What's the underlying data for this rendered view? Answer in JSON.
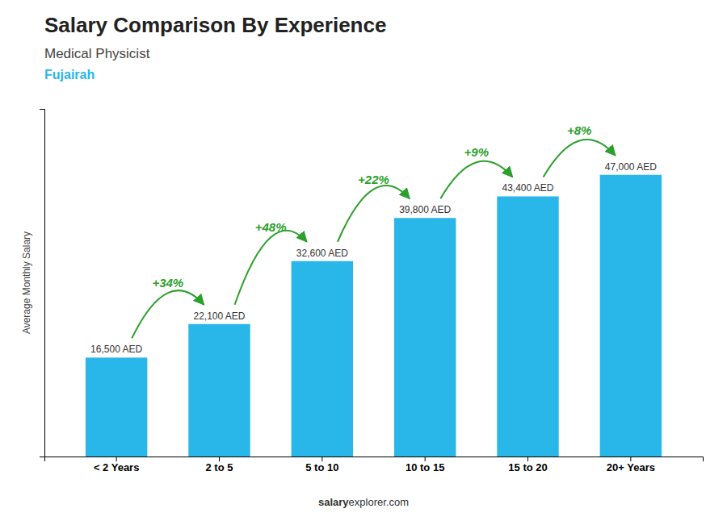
{
  "chart_data": {
    "type": "bar",
    "title": "Salary Comparison By Experience",
    "subtitle": "Medical Physicist",
    "annotations": [
      "Fujairah",
      "salary",
      "explorer.com"
    ],
    "y_label": "Average Monthly Salary",
    "categories": [
      "< 2 Years",
      "2 to 5",
      "5 to 10",
      "10 to 15",
      "15 to 20",
      "20+ Years"
    ],
    "values": [
      16500,
      22100,
      32600,
      39800,
      43400,
      47000
    ],
    "value_labels": [
      "16,500 AED",
      "22,100 AED",
      "32,600 AED",
      "39,800 AED",
      "43,400 AED",
      "47,000 AED"
    ],
    "change_labels": [
      "+34%",
      "+48%",
      "+22%",
      "+9%",
      "+8%"
    ],
    "color": "#29b6e8",
    "ylim": [
      0,
      58000
    ],
    "yticks": [],
    "data_labels": true,
    "tick_labels": "x",
    "grid": false
  }
}
